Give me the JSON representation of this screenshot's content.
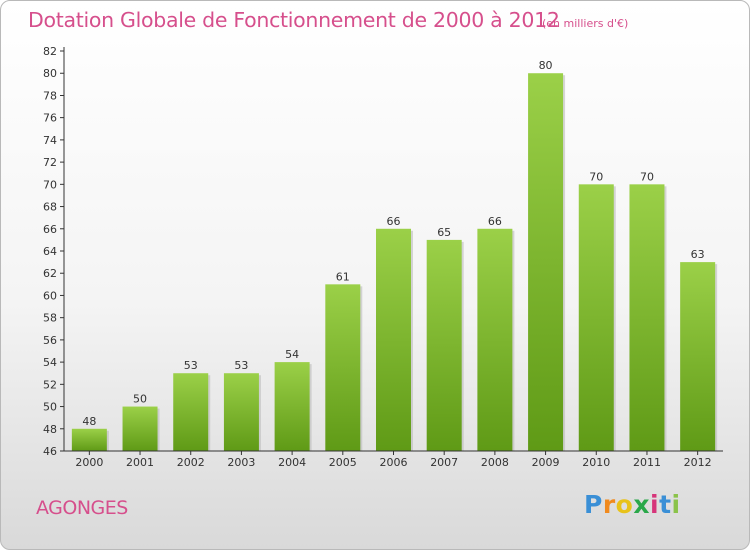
{
  "chart_data": {
    "type": "bar",
    "title": "Dotation Globale de Fonctionnement de 2000 à 2012",
    "unit_label": "(en milliers d'€)",
    "categories": [
      "2000",
      "2001",
      "2002",
      "2003",
      "2004",
      "2005",
      "2006",
      "2007",
      "2008",
      "2009",
      "2010",
      "2011",
      "2012"
    ],
    "values": [
      48,
      50,
      53,
      53,
      54,
      61,
      66,
      65,
      66,
      80,
      70,
      70,
      63
    ],
    "value_labels": [
      "48",
      "50",
      "53",
      "53",
      "54",
      "61",
      "66",
      "65",
      "66",
      "80",
      "70",
      "70",
      "63"
    ],
    "ylim": [
      46,
      82
    ],
    "yticks": [
      "46",
      "48",
      "50",
      "52",
      "54",
      "56",
      "58",
      "60",
      "62",
      "64",
      "66",
      "68",
      "70",
      "72",
      "74",
      "76",
      "78",
      "80",
      "82"
    ],
    "grid": false,
    "bar_color": "#7cb52e"
  },
  "footer": {
    "commune": "AGONGES",
    "logo_letters": [
      "P",
      "r",
      "o",
      "x",
      "i",
      "t",
      "i"
    ],
    "logo_colors": [
      "#3a8fd6",
      "#f08a1e",
      "#e8c21a",
      "#2aa84a",
      "#d6357a",
      "#3a8fd6",
      "#8bc34a"
    ]
  }
}
